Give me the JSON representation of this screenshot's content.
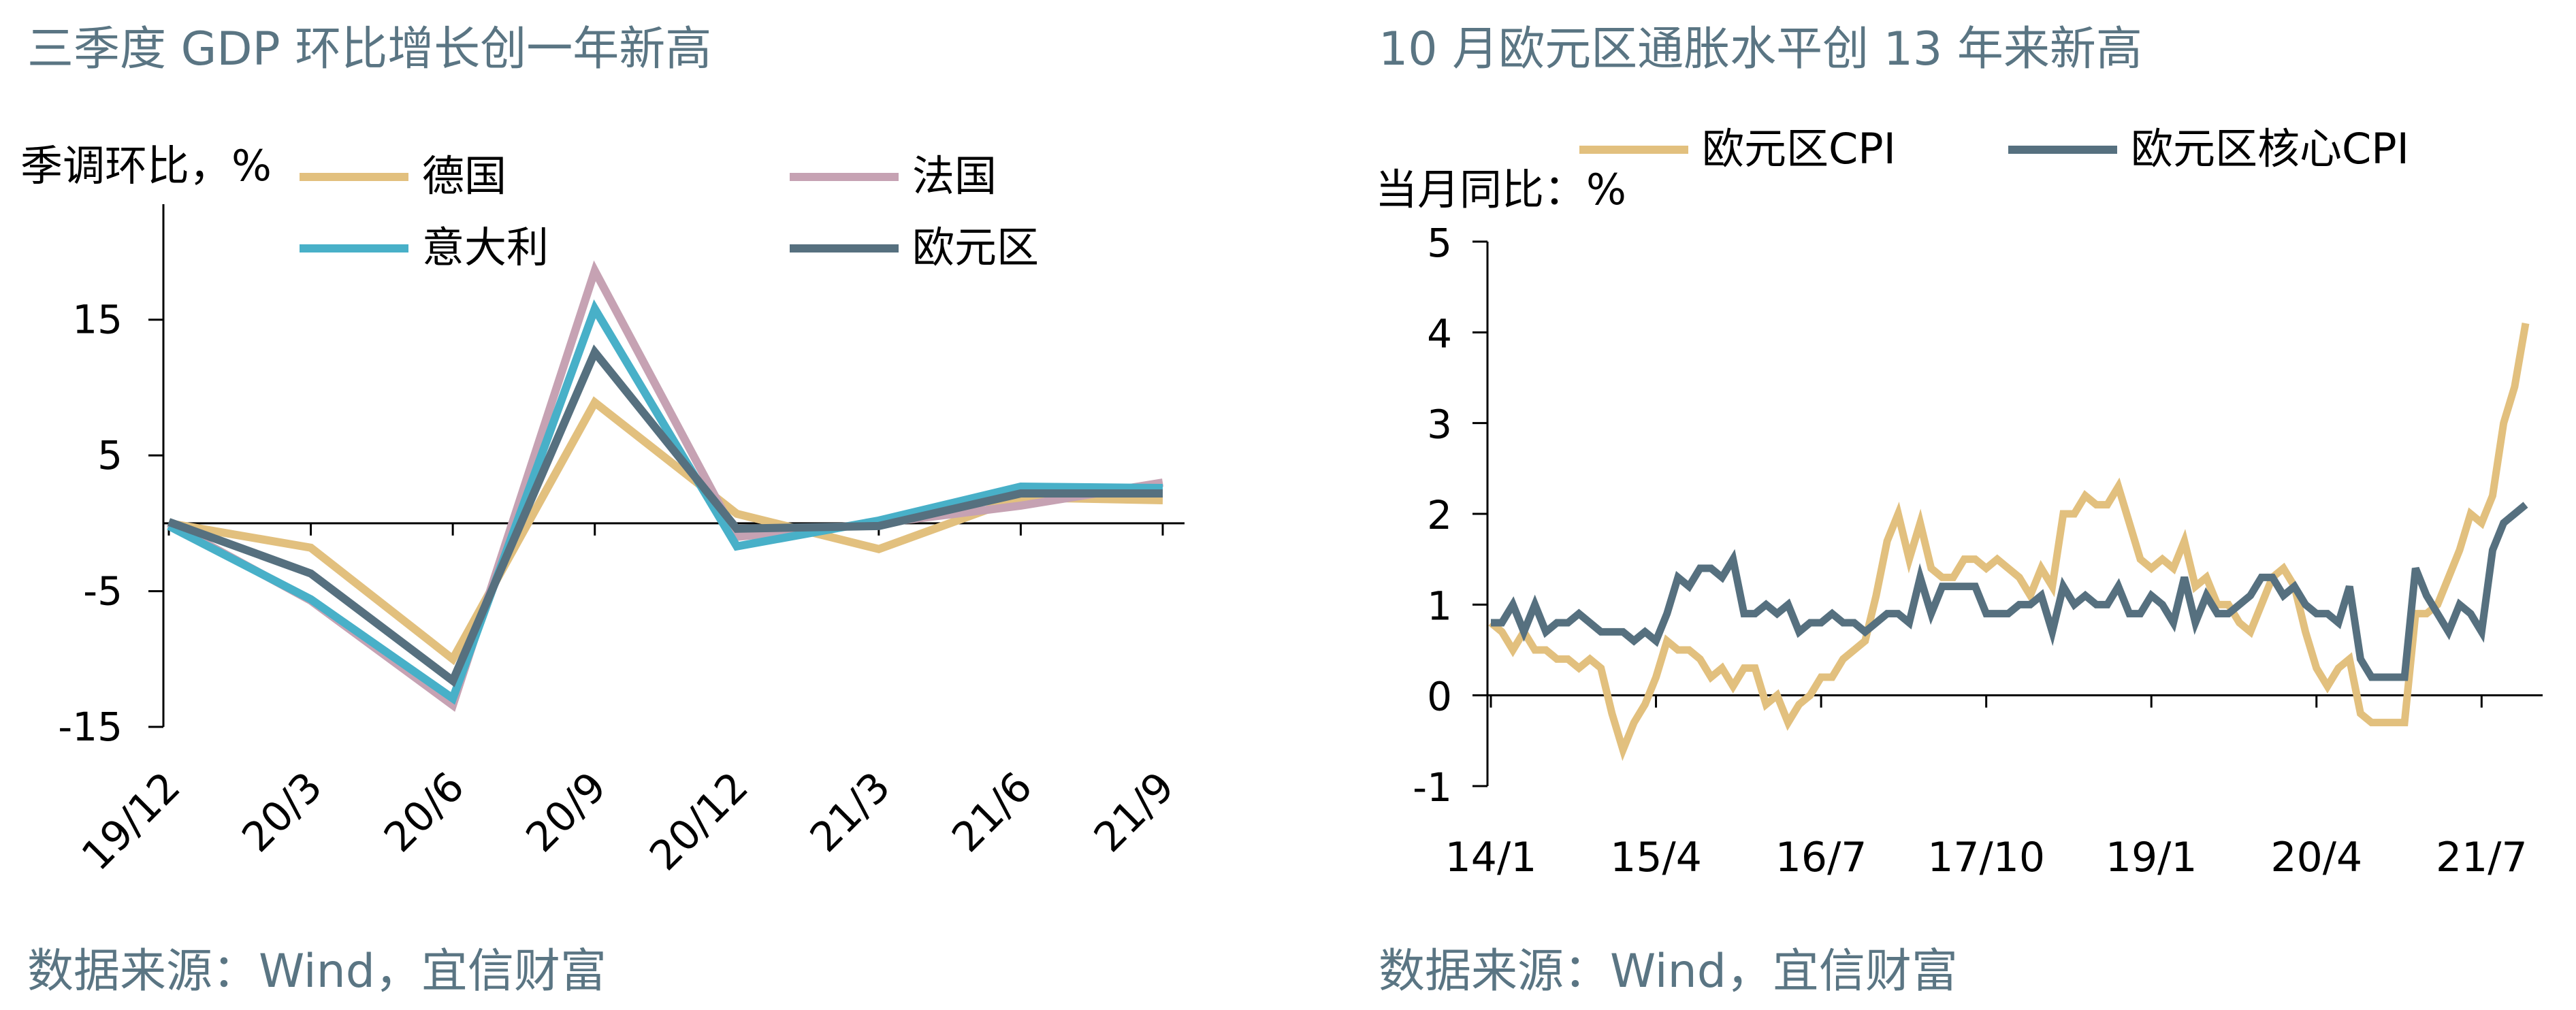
{
  "charts": [
    {
      "title": "三季度 GDP 环比增长创一年新高",
      "unit_label": "季调环比，%",
      "source": "数据来源：Wind，宜信财富"
    },
    {
      "title": "10 月欧元区通胀水平创 13 年来新高",
      "unit_label": "当月同比：%",
      "source": "数据来源：Wind，宜信财富"
    }
  ],
  "chart_data": [
    {
      "type": "line",
      "title": "三季度 GDP 环比增长创一年新高",
      "ylabel": "季调环比，%",
      "ylim": [
        -15,
        20
      ],
      "yticks": [
        "15",
        "5",
        "-5",
        "-15"
      ],
      "categories": [
        "19/12",
        "20/3",
        "20/6",
        "20/9",
        "20/12",
        "21/3",
        "21/6",
        "21/9"
      ],
      "legend_position": "top",
      "grid": false,
      "series": [
        {
          "name": "德国",
          "color": "#e2c07e",
          "values": [
            0.0,
            -1.8,
            -10.0,
            8.9,
            0.7,
            -1.9,
            1.9,
            1.7
          ]
        },
        {
          "name": "法国",
          "color": "#c6a2b3",
          "values": [
            0.0,
            -5.7,
            -13.4,
            18.6,
            -1.0,
            0.0,
            1.3,
            3.0
          ]
        },
        {
          "name": "意大利",
          "color": "#48b0c8",
          "values": [
            -0.2,
            -5.6,
            -12.9,
            15.8,
            -1.7,
            0.2,
            2.7,
            2.6
          ]
        },
        {
          "name": "欧元区",
          "color": "#56707f",
          "values": [
            0.1,
            -3.7,
            -11.6,
            12.6,
            -0.4,
            -0.2,
            2.2,
            2.2
          ]
        }
      ]
    },
    {
      "type": "line",
      "title": "10 月欧元区通胀水平创 13 年来新高",
      "ylabel": "当月同比：%",
      "ylim": [
        -1,
        5
      ],
      "yticks": [
        "5",
        "4",
        "3",
        "2",
        "1",
        "0",
        "-1"
      ],
      "x_tick_labels": [
        "14/1",
        "15/4",
        "16/7",
        "17/10",
        "19/1",
        "20/4",
        "21/7"
      ],
      "x_range": [
        "2014-01",
        "2021-10"
      ],
      "legend_position": "top",
      "grid": false,
      "series": [
        {
          "name": "欧元区CPI",
          "color": "#e2c07e",
          "values": [
            0.8,
            0.7,
            0.5,
            0.7,
            0.5,
            0.5,
            0.4,
            0.4,
            0.3,
            0.4,
            0.3,
            -0.2,
            -0.6,
            -0.3,
            -0.1,
            0.2,
            0.6,
            0.5,
            0.5,
            0.4,
            0.2,
            0.3,
            0.1,
            0.3,
            0.3,
            -0.1,
            0.0,
            -0.3,
            -0.1,
            0.0,
            0.2,
            0.2,
            0.4,
            0.5,
            0.6,
            1.1,
            1.7,
            2.0,
            1.5,
            1.9,
            1.4,
            1.3,
            1.3,
            1.5,
            1.5,
            1.4,
            1.5,
            1.4,
            1.3,
            1.1,
            1.4,
            1.2,
            2.0,
            2.0,
            2.2,
            2.1,
            2.1,
            2.3,
            1.9,
            1.5,
            1.4,
            1.5,
            1.4,
            1.7,
            1.2,
            1.3,
            1.0,
            1.0,
            0.8,
            0.7,
            1.0,
            1.3,
            1.4,
            1.2,
            0.7,
            0.3,
            0.1,
            0.3,
            0.4,
            -0.2,
            -0.3,
            -0.3,
            -0.3,
            -0.3,
            0.9,
            0.9,
            1.0,
            1.3,
            1.6,
            2.0,
            1.9,
            2.2,
            3.0,
            3.4,
            4.1
          ]
        },
        {
          "name": "欧元区核心CPI",
          "color": "#56707f",
          "values": [
            0.8,
            0.8,
            1.0,
            0.7,
            1.0,
            0.7,
            0.8,
            0.8,
            0.9,
            0.8,
            0.7,
            0.7,
            0.7,
            0.6,
            0.7,
            0.6,
            0.9,
            1.3,
            1.2,
            1.4,
            1.4,
            1.3,
            1.5,
            0.9,
            0.9,
            1.0,
            0.9,
            1.0,
            0.7,
            0.8,
            0.8,
            0.9,
            0.8,
            0.8,
            0.7,
            0.8,
            0.9,
            0.9,
            0.8,
            1.3,
            0.9,
            1.2,
            1.2,
            1.2,
            1.2,
            0.9,
            0.9,
            0.9,
            1.0,
            1.0,
            1.1,
            0.7,
            1.2,
            1.0,
            1.1,
            1.0,
            1.0,
            1.2,
            0.9,
            0.9,
            1.1,
            1.0,
            0.8,
            1.3,
            0.8,
            1.1,
            0.9,
            0.9,
            1.0,
            1.1,
            1.3,
            1.3,
            1.1,
            1.2,
            1.0,
            0.9,
            0.9,
            0.8,
            1.2,
            0.4,
            0.2,
            0.2,
            0.2,
            0.2,
            1.4,
            1.1,
            0.9,
            0.7,
            1.0,
            0.9,
            0.7,
            1.6,
            1.9,
            2.0,
            2.1
          ]
        }
      ]
    }
  ]
}
